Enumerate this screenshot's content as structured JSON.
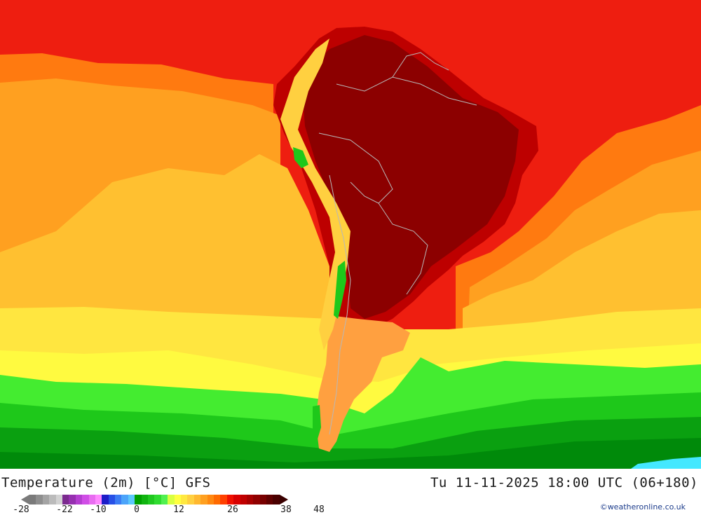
{
  "map": {
    "title_left": "Temperature (2m) [°C] GFS",
    "title_right": "Tu 11-11-2025 18:00 UTC (06+180)",
    "credit": "©weatheronline.co.uk",
    "legend": {
      "tick_labels": [
        "-28",
        "-22",
        "-10",
        "0",
        "12",
        "26",
        "38",
        "48"
      ],
      "colors": [
        "#7a7a7a",
        "#8e8e8e",
        "#a4a4a4",
        "#bbbbbb",
        "#d2d2d2",
        "#7b2a8f",
        "#9630b0",
        "#b43ed0",
        "#d04ee6",
        "#e86cf0",
        "#ff88ff",
        "#1c1cc8",
        "#2850e6",
        "#3c7cf4",
        "#4ca4fa",
        "#5cc8fc",
        "#00a000",
        "#10b410",
        "#20c820",
        "#30dc30",
        "#50f050",
        "#d8ff40",
        "#ffff40",
        "#ffe840",
        "#ffd040",
        "#ffb830",
        "#ffa020",
        "#ff8810",
        "#ff6a00",
        "#ff4000",
        "#f01000",
        "#d80000",
        "#c00000",
        "#a80000",
        "#900000",
        "#780000",
        "#600000",
        "#4a0000"
      ],
      "arrow_low_color": "#7a7a7a",
      "arrow_high_color": "#3a0000"
    },
    "palette": {
      "ocean_red": "#ee1e10",
      "ocean_dark_orange": "#ff7a10",
      "ocean_orange": "#ffa020",
      "ocean_light_orange": "#ffc030",
      "ocean_yellow": "#ffe640",
      "ocean_bright_yellow": "#fffa40",
      "green_light": "#44ec30",
      "green_mid": "#1ec81a",
      "green_dark": "#0aa010",
      "green_darker": "#008a0a",
      "land_dark_red": "#8c0000",
      "land_red": "#bd0000",
      "patagonia_orange": "#ffa040",
      "andes_yellow": "#ffd040",
      "cyan": "#44e8ff",
      "border": "#b8b8b8"
    }
  }
}
